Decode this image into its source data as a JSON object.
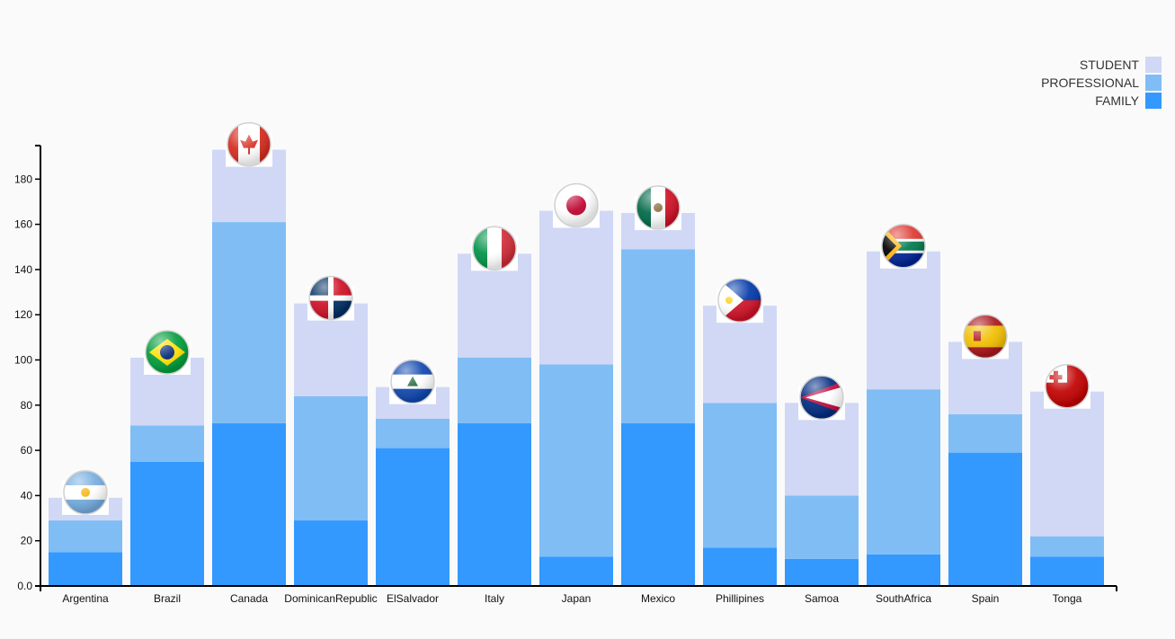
{
  "chart_data": {
    "type": "bar",
    "stacked": true,
    "categories": [
      "Argentina",
      "Brazil",
      "Canada",
      "DominicanRepublic",
      "ElSalvador",
      "Italy",
      "Japan",
      "Mexico",
      "Phillipines",
      "Samoa",
      "SouthAfrica",
      "Spain",
      "Tonga"
    ],
    "series": [
      {
        "name": "FAMILY",
        "color": "#3399ff",
        "values": [
          15,
          55,
          72,
          29,
          61,
          72,
          13,
          72,
          17,
          12,
          14,
          59,
          13
        ]
      },
      {
        "name": "PROFESSIONAL",
        "color": "#80bdf5",
        "values": [
          14,
          16,
          89,
          55,
          13,
          29,
          85,
          77,
          64,
          28,
          73,
          17,
          9
        ]
      },
      {
        "name": "STUDENT",
        "color": "#d0d8f5",
        "values": [
          10,
          30,
          32,
          41,
          14,
          46,
          68,
          16,
          43,
          41,
          61,
          32,
          64
        ]
      }
    ],
    "legend_order": [
      "STUDENT",
      "PROFESSIONAL",
      "FAMILY"
    ],
    "legend_position": "top-right",
    "flag_icons": [
      "argentina-flag-icon",
      "brazil-flag-icon",
      "canada-flag-icon",
      "dominican-republic-flag-icon",
      "el-salvador-flag-icon",
      "italy-flag-icon",
      "japan-flag-icon",
      "mexico-flag-icon",
      "philippines-flag-icon",
      "samoa-flag-icon",
      "south-africa-flag-icon",
      "spain-flag-icon",
      "tonga-flag-icon"
    ],
    "y_ticks": [
      "0.0",
      "20",
      "40",
      "60",
      "80",
      "100",
      "120",
      "140",
      "160",
      "180"
    ],
    "ylim": [
      0,
      195
    ],
    "grid": false,
    "title": "",
    "xlabel": "",
    "ylabel": ""
  }
}
